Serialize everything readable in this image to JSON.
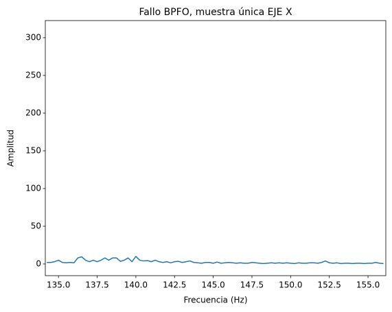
{
  "chart_data": {
    "type": "line",
    "title": "Fallo BPFO, muestra única EJE X",
    "xlabel": "Frecuencia (Hz)",
    "ylabel": "Amplitud",
    "color": "#1f77b4",
    "x": [
      134.25,
      134.5,
      134.75,
      135,
      135.25,
      135.5,
      135.75,
      136,
      136.25,
      136.5,
      136.75,
      137,
      137.25,
      137.5,
      137.75,
      138,
      138.25,
      138.5,
      138.75,
      139,
      139.25,
      139.5,
      139.75,
      140,
      140.25,
      140.5,
      140.75,
      141,
      141.25,
      141.5,
      141.75,
      142,
      142.25,
      142.5,
      142.75,
      143,
      143.25,
      143.5,
      143.75,
      144,
      144.25,
      144.5,
      144.75,
      145,
      145.25,
      145.5,
      145.75,
      146,
      146.25,
      146.5,
      146.75,
      147,
      147.25,
      147.5,
      147.75,
      148,
      148.25,
      148.5,
      148.75,
      149,
      149.25,
      149.5,
      149.75,
      150,
      150.25,
      150.5,
      150.75,
      151,
      151.25,
      151.5,
      151.75,
      152,
      152.25,
      152.5,
      152.75,
      153,
      153.25,
      153.5,
      153.75,
      154,
      154.25,
      154.5,
      154.75,
      155,
      155.25,
      155.5,
      155.75,
      156
    ],
    "values": [
      2,
      2,
      3,
      5,
      2,
      1.5,
      2,
      1.5,
      8,
      9.5,
      5,
      3,
      5,
      3,
      5,
      8,
      5,
      8,
      8,
      3.5,
      5,
      8,
      3,
      10,
      5,
      4,
      4.5,
      3,
      5,
      3,
      2,
      3,
      1.5,
      3,
      3.5,
      2,
      3,
      4,
      2,
      1.5,
      1,
      2,
      2,
      1,
      2.5,
      1,
      1.5,
      2,
      1.5,
      1,
      1.5,
      1,
      1,
      2,
      1.5,
      1,
      0.5,
      1,
      1.5,
      1,
      1.5,
      1,
      1.5,
      1,
      0.5,
      1.5,
      1,
      1,
      1.5,
      1.5,
      1,
      2,
      4,
      1.5,
      1,
      1.5,
      0.5,
      1,
      1,
      0.5,
      1,
      1,
      0.5,
      1,
      1,
      2,
      1,
      0.5
    ],
    "xlim": [
      134.15,
      156.15
    ],
    "ylim": [
      -15.5,
      322.7
    ],
    "xticks": [
      {
        "value": 135,
        "label": "135.0"
      },
      137.5,
      {
        "value": 140,
        "label": "140.0"
      },
      142.5,
      {
        "value": 145,
        "label": "145.0"
      },
      147.5,
      {
        "value": 150,
        "label": "150.0"
      },
      152.5,
      {
        "value": 155,
        "label": "155.0"
      }
    ],
    "yticks": [
      0,
      50,
      100,
      150,
      200,
      250,
      300
    ],
    "grid": false
  }
}
